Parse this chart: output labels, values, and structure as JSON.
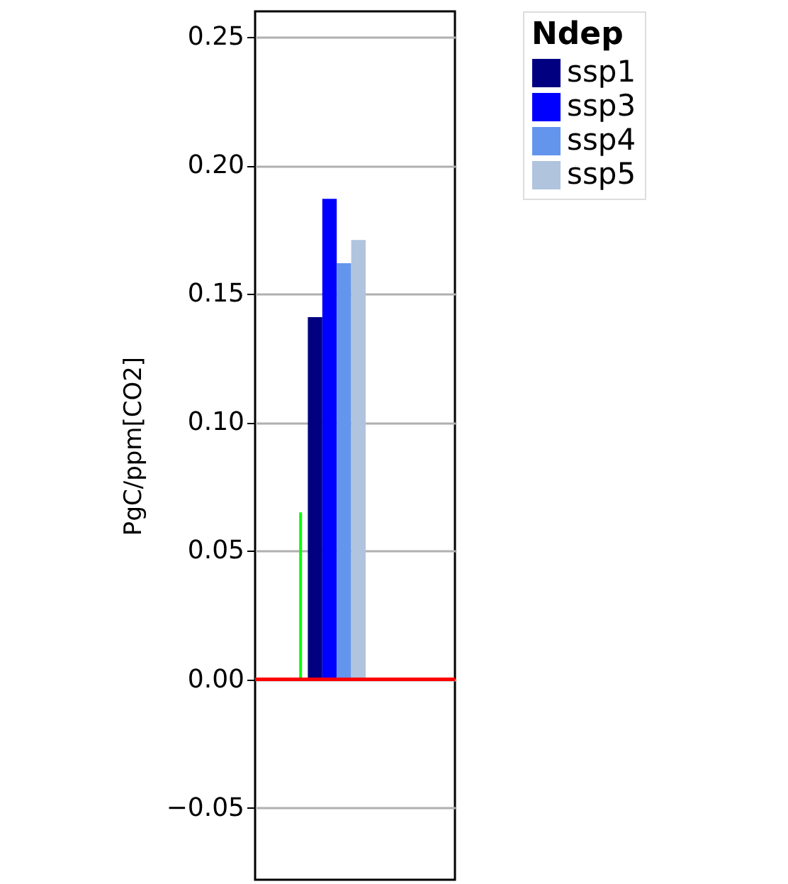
{
  "chart_data": {
    "type": "bar",
    "ylabel": "PgC/ppm[CO2]",
    "legend_title": "Ndep",
    "categories": [
      null
    ],
    "series": [
      {
        "color": "#00ff00",
        "values": [
          0.065
        ]
      },
      {
        "name": "ssp1",
        "color": "#000080",
        "values": [
          0.141
        ]
      },
      {
        "name": "ssp3",
        "color": "#0000ff",
        "values": [
          0.187
        ]
      },
      {
        "name": "ssp4",
        "color": "#6495ed",
        "values": [
          0.162
        ]
      },
      {
        "name": "ssp5",
        "color": "#b0c4de",
        "values": [
          0.171
        ]
      }
    ],
    "ylim": [
      -0.078,
      0.26
    ],
    "yticks": [
      {
        "value": -0.05,
        "label": "−0.05"
      },
      {
        "value": 0,
        "label": "0.00"
      },
      {
        "value": 0.05,
        "label": "0.05"
      },
      {
        "value": 0.1,
        "label": "0.10"
      },
      {
        "value": 0.15,
        "label": "0.15"
      },
      {
        "value": 0.2,
        "label": "0.20"
      },
      {
        "value": 0.25,
        "label": "0.25"
      }
    ],
    "ref_lines": [
      {
        "axis": "y",
        "value": 0,
        "color": "#ff0000"
      }
    ],
    "grid": "y",
    "legend": "right",
    "tick_labels": "y"
  }
}
